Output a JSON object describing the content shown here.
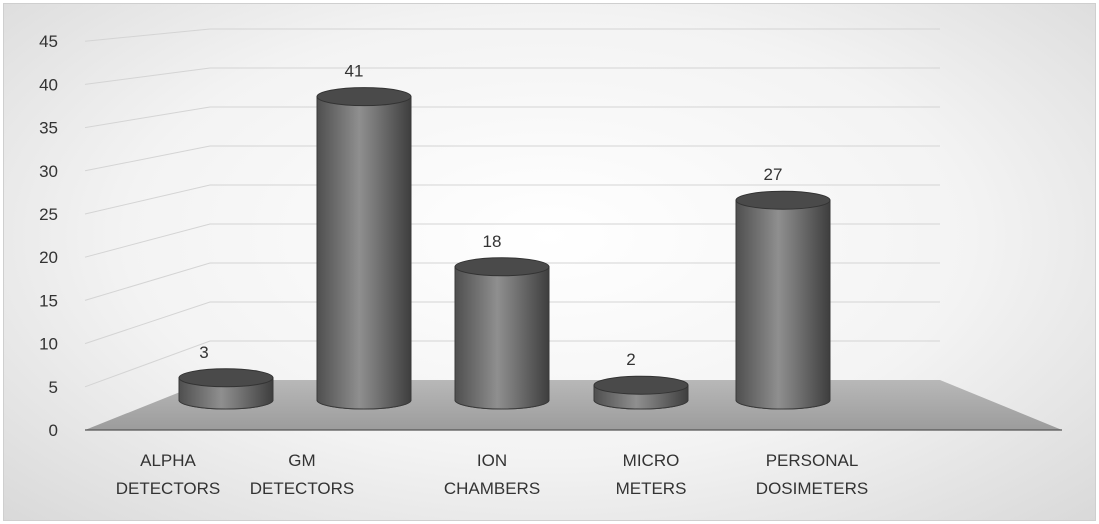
{
  "chart_data": {
    "type": "bar",
    "style": "3d-cylinder",
    "categories": [
      "ALPHA DETECTORS",
      "GM DETECTORS",
      "ION CHAMBERS",
      "MICRO METERS",
      "PERSONAL DOSIMETERS"
    ],
    "category_lines": [
      [
        "ALPHA",
        "DETECTORS"
      ],
      [
        "GM",
        "DETECTORS"
      ],
      [
        "ION",
        "CHAMBERS"
      ],
      [
        "MICRO",
        "METERS"
      ],
      [
        "PERSONAL",
        "DOSIMETERS"
      ]
    ],
    "values": [
      3,
      41,
      18,
      2,
      27
    ],
    "data_labels": [
      "3",
      "41",
      "18",
      "2",
      "27"
    ],
    "ylim": [
      0,
      45
    ],
    "yticks": [
      0,
      5,
      10,
      15,
      20,
      25,
      30,
      35,
      40,
      45
    ],
    "title": "",
    "xlabel": "",
    "ylabel": "",
    "grid": true,
    "legend": "none",
    "colors": {
      "bar": "#6e6e6e",
      "bar_top": "#4a4a4a",
      "floor": "#a6a6a6",
      "grid": "#d4d4d4",
      "text": "#333333"
    }
  }
}
